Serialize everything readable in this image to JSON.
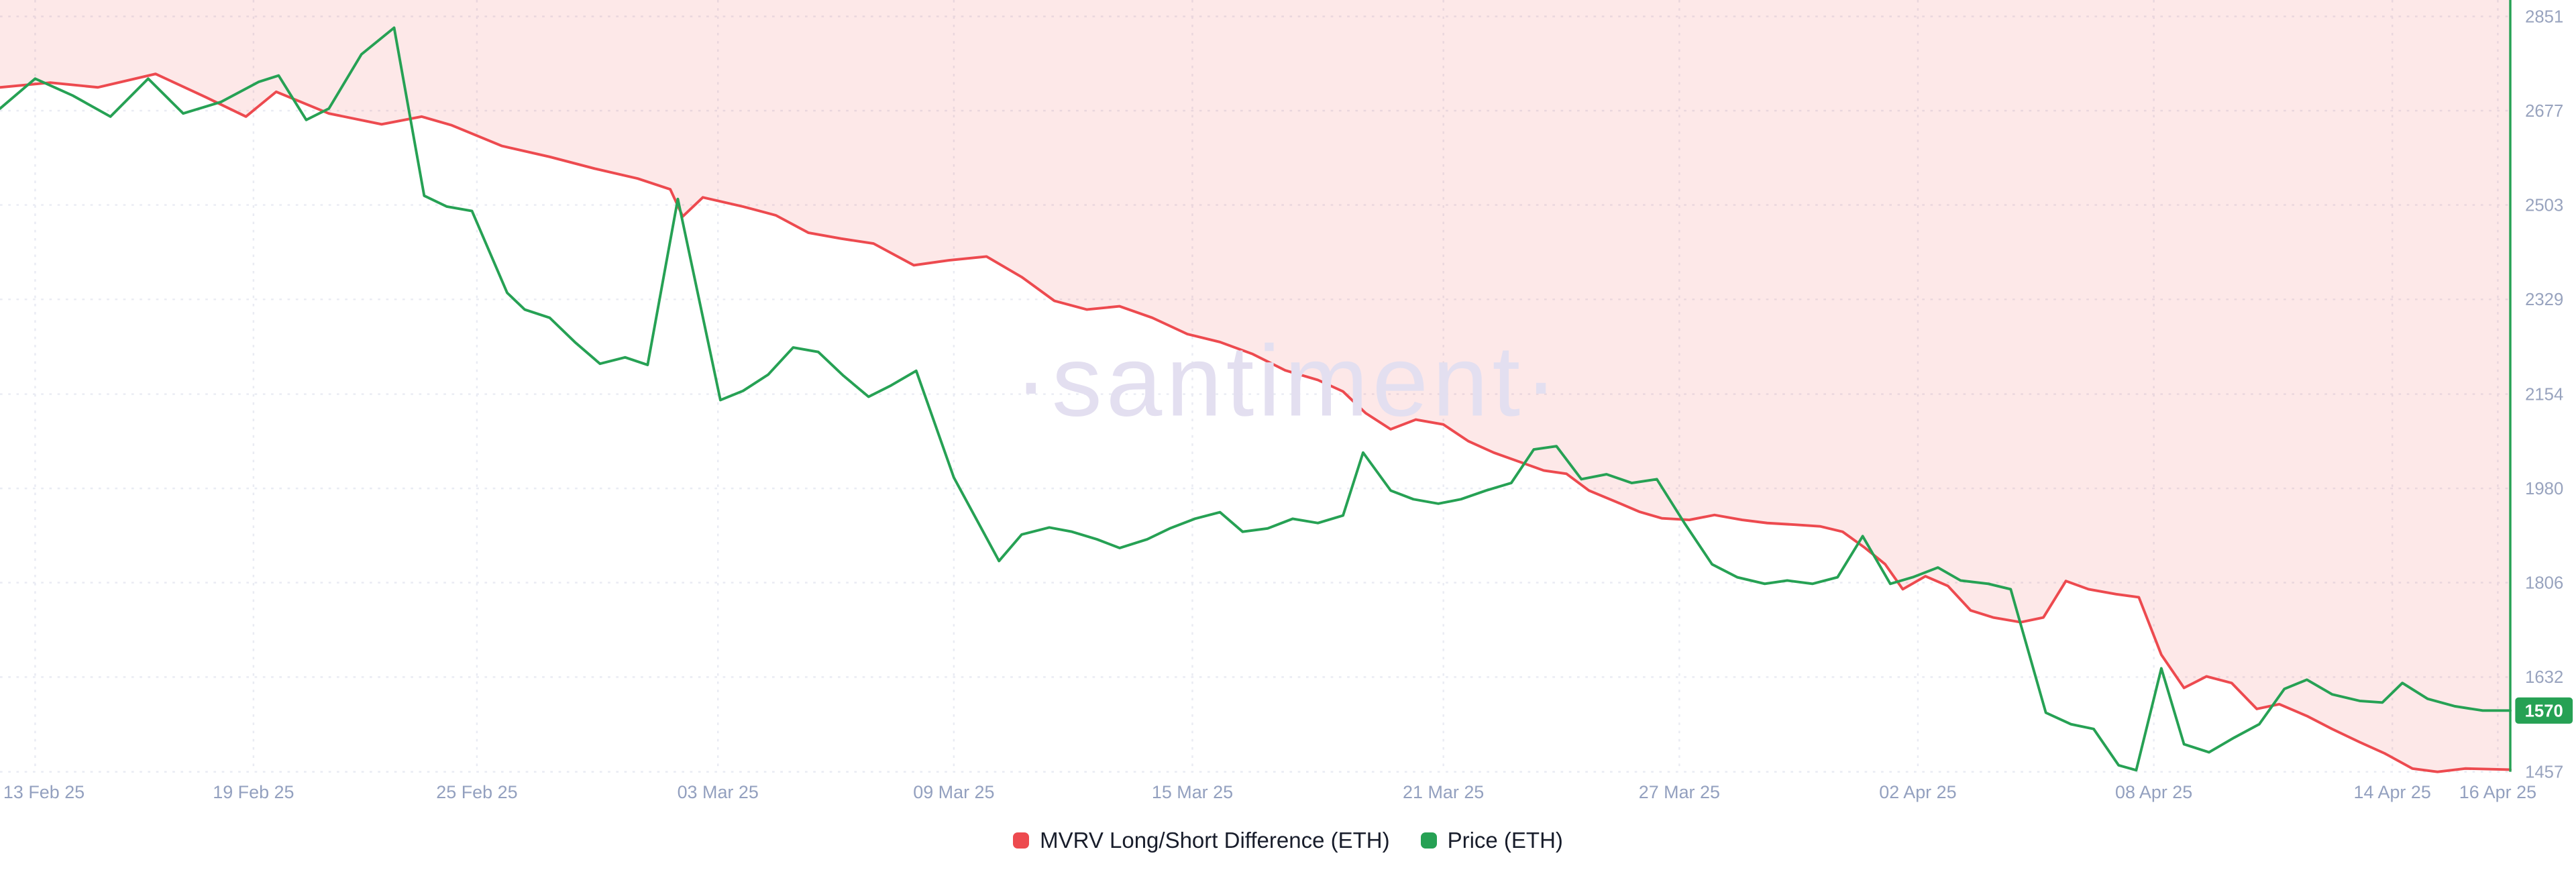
{
  "watermark": "·santiment·",
  "chart_data": {
    "type": "line",
    "title": "",
    "legend_position": "bottom",
    "grid": true,
    "x_axis": {
      "labels": [
        "13 Feb 25",
        "19 Feb 25",
        "25 Feb 25",
        "03 Mar 25",
        "09 Mar 25",
        "15 Mar 25",
        "21 Mar 25",
        "27 Mar 25",
        "02 Apr 25",
        "08 Apr 25",
        "14 Apr 25",
        "16 Apr 25"
      ],
      "label_positions": [
        0.014,
        0.101,
        0.19,
        0.286,
        0.38,
        0.475,
        0.575,
        0.669,
        0.764,
        0.858,
        0.953,
        0.995
      ]
    },
    "y_axis": {
      "side": "right",
      "ticks": [
        2851,
        2677,
        2503,
        2329,
        2154,
        1980,
        1806,
        1632,
        1457
      ],
      "min": 1457,
      "max": 2851
    },
    "series": [
      {
        "name": "MVRV Long/Short Difference (ETH)",
        "color": "#ed4a4f",
        "area_fill_above": true,
        "area_color": "rgba(237,74,79,0.13)",
        "points": [
          [
            0.0,
            2720
          ],
          [
            0.02,
            2729
          ],
          [
            0.039,
            2720
          ],
          [
            0.062,
            2745
          ],
          [
            0.082,
            2702
          ],
          [
            0.098,
            2666
          ],
          [
            0.11,
            2712
          ],
          [
            0.131,
            2672
          ],
          [
            0.152,
            2652
          ],
          [
            0.168,
            2666
          ],
          [
            0.18,
            2650
          ],
          [
            0.2,
            2612
          ],
          [
            0.219,
            2592
          ],
          [
            0.237,
            2570
          ],
          [
            0.254,
            2552
          ],
          [
            0.267,
            2532
          ],
          [
            0.272,
            2482
          ],
          [
            0.28,
            2517
          ],
          [
            0.296,
            2500
          ],
          [
            0.309,
            2484
          ],
          [
            0.322,
            2452
          ],
          [
            0.335,
            2441
          ],
          [
            0.348,
            2432
          ],
          [
            0.364,
            2392
          ],
          [
            0.378,
            2401
          ],
          [
            0.393,
            2408
          ],
          [
            0.407,
            2370
          ],
          [
            0.42,
            2326
          ],
          [
            0.433,
            2310
          ],
          [
            0.446,
            2316
          ],
          [
            0.459,
            2295
          ],
          [
            0.473,
            2265
          ],
          [
            0.486,
            2250
          ],
          [
            0.499,
            2228
          ],
          [
            0.512,
            2198
          ],
          [
            0.525,
            2180
          ],
          [
            0.535,
            2159
          ],
          [
            0.544,
            2119
          ],
          [
            0.554,
            2089
          ],
          [
            0.564,
            2107
          ],
          [
            0.575,
            2098
          ],
          [
            0.585,
            2067
          ],
          [
            0.595,
            2046
          ],
          [
            0.606,
            2028
          ],
          [
            0.615,
            2013
          ],
          [
            0.624,
            2007
          ],
          [
            0.633,
            1976
          ],
          [
            0.644,
            1955
          ],
          [
            0.653,
            1937
          ],
          [
            0.662,
            1925
          ],
          [
            0.673,
            1922
          ],
          [
            0.683,
            1931
          ],
          [
            0.694,
            1922
          ],
          [
            0.704,
            1916
          ],
          [
            0.715,
            1913
          ],
          [
            0.725,
            1910
          ],
          [
            0.734,
            1900
          ],
          [
            0.743,
            1870
          ],
          [
            0.751,
            1840
          ],
          [
            0.758,
            1794
          ],
          [
            0.767,
            1818
          ],
          [
            0.776,
            1800
          ],
          [
            0.785,
            1755
          ],
          [
            0.794,
            1742
          ],
          [
            0.805,
            1733
          ],
          [
            0.814,
            1742
          ],
          [
            0.823,
            1809
          ],
          [
            0.832,
            1794
          ],
          [
            0.843,
            1785
          ],
          [
            0.852,
            1779
          ],
          [
            0.861,
            1673
          ],
          [
            0.87,
            1612
          ],
          [
            0.879,
            1633
          ],
          [
            0.889,
            1621
          ],
          [
            0.899,
            1573
          ],
          [
            0.908,
            1582
          ],
          [
            0.919,
            1560
          ],
          [
            0.929,
            1536
          ],
          [
            0.94,
            1512
          ],
          [
            0.95,
            1491
          ],
          [
            0.961,
            1463
          ],
          [
            0.971,
            1457
          ],
          [
            0.982,
            1463
          ],
          [
            1.0,
            1461
          ]
        ]
      },
      {
        "name": "Price (ETH)",
        "color": "#26a154",
        "points": [
          [
            0.0,
            2681
          ],
          [
            0.014,
            2736
          ],
          [
            0.029,
            2705
          ],
          [
            0.044,
            2666
          ],
          [
            0.059,
            2736
          ],
          [
            0.073,
            2672
          ],
          [
            0.088,
            2693
          ],
          [
            0.103,
            2730
          ],
          [
            0.111,
            2742
          ],
          [
            0.122,
            2660
          ],
          [
            0.131,
            2681
          ],
          [
            0.144,
            2781
          ],
          [
            0.157,
            2830
          ],
          [
            0.169,
            2520
          ],
          [
            0.178,
            2500
          ],
          [
            0.188,
            2492
          ],
          [
            0.202,
            2341
          ],
          [
            0.209,
            2310
          ],
          [
            0.219,
            2295
          ],
          [
            0.229,
            2250
          ],
          [
            0.239,
            2210
          ],
          [
            0.249,
            2222
          ],
          [
            0.258,
            2208
          ],
          [
            0.27,
            2514
          ],
          [
            0.287,
            2143
          ],
          [
            0.296,
            2160
          ],
          [
            0.306,
            2190
          ],
          [
            0.316,
            2240
          ],
          [
            0.326,
            2232
          ],
          [
            0.336,
            2188
          ],
          [
            0.346,
            2149
          ],
          [
            0.355,
            2170
          ],
          [
            0.365,
            2197
          ],
          [
            0.38,
            2000
          ],
          [
            0.398,
            1846
          ],
          [
            0.407,
            1895
          ],
          [
            0.418,
            1908
          ],
          [
            0.427,
            1900
          ],
          [
            0.437,
            1886
          ],
          [
            0.446,
            1870
          ],
          [
            0.457,
            1886
          ],
          [
            0.466,
            1906
          ],
          [
            0.476,
            1924
          ],
          [
            0.486,
            1936
          ],
          [
            0.495,
            1900
          ],
          [
            0.505,
            1906
          ],
          [
            0.515,
            1924
          ],
          [
            0.525,
            1916
          ],
          [
            0.535,
            1930
          ],
          [
            0.543,
            2046
          ],
          [
            0.554,
            1976
          ],
          [
            0.563,
            1960
          ],
          [
            0.573,
            1952
          ],
          [
            0.582,
            1960
          ],
          [
            0.592,
            1976
          ],
          [
            0.602,
            1990
          ],
          [
            0.611,
            2052
          ],
          [
            0.62,
            2058
          ],
          [
            0.63,
            1997
          ],
          [
            0.64,
            2006
          ],
          [
            0.65,
            1990
          ],
          [
            0.66,
            1997
          ],
          [
            0.671,
            1916
          ],
          [
            0.682,
            1840
          ],
          [
            0.692,
            1816
          ],
          [
            0.703,
            1804
          ],
          [
            0.712,
            1810
          ],
          [
            0.722,
            1804
          ],
          [
            0.732,
            1816
          ],
          [
            0.742,
            1892
          ],
          [
            0.753,
            1804
          ],
          [
            0.762,
            1816
          ],
          [
            0.772,
            1834
          ],
          [
            0.781,
            1810
          ],
          [
            0.792,
            1804
          ],
          [
            0.801,
            1794
          ],
          [
            0.815,
            1566
          ],
          [
            0.825,
            1545
          ],
          [
            0.834,
            1536
          ],
          [
            0.844,
            1469
          ],
          [
            0.851,
            1460
          ],
          [
            0.861,
            1648
          ],
          [
            0.87,
            1508
          ],
          [
            0.88,
            1493
          ],
          [
            0.89,
            1520
          ],
          [
            0.9,
            1545
          ],
          [
            0.91,
            1610
          ],
          [
            0.919,
            1627
          ],
          [
            0.929,
            1600
          ],
          [
            0.94,
            1588
          ],
          [
            0.949,
            1585
          ],
          [
            0.957,
            1621
          ],
          [
            0.967,
            1592
          ],
          [
            0.978,
            1578
          ],
          [
            0.989,
            1570
          ],
          [
            1.0,
            1570
          ]
        ]
      }
    ],
    "current_marker_color": "#26a154",
    "last_price_badge": {
      "value": "1570",
      "color": "#26a154",
      "text_color": "#ffffff"
    }
  }
}
